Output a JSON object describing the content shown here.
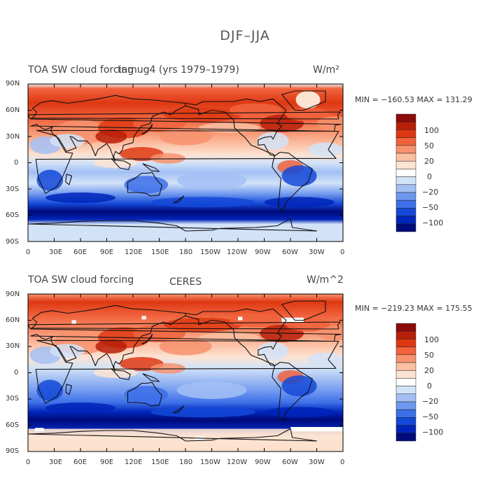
{
  "figure_title": "DJF–JJA",
  "colors": {
    "frame": "#000000",
    "coast": "#111111"
  },
  "colorbar": {
    "colors": [
      "#000a7a",
      "#0025b8",
      "#1449d8",
      "#3d6fe8",
      "#6e97ee",
      "#a3bff4",
      "#d2e3f8",
      "#ffffff",
      "#fde3d2",
      "#fbbfa3",
      "#f7926e",
      "#f0633d",
      "#de3812",
      "#b81f08",
      "#8b0a0a"
    ],
    "labels": [
      "100",
      "50",
      "20",
      "0",
      "−20",
      "−50",
      "−100"
    ]
  },
  "x_ticks": [
    "0",
    "30E",
    "60E",
    "90E",
    "120E",
    "150E",
    "180",
    "150W",
    "120W",
    "90W",
    "60W",
    "30W",
    "0"
  ],
  "y_ticks": [
    "90N",
    "60N",
    "30N",
    "0",
    "30S",
    "60S",
    "90S"
  ],
  "panels": [
    {
      "title_left": "TOA SW cloud forcing",
      "title_center": "tamug4 (yrs 1979–1979)",
      "units": "W/m²",
      "stats": "MIN = −160.53  MAX = 131.29"
    },
    {
      "title_left": "TOA SW cloud forcing",
      "title_center": "CERES",
      "units": "W/m^2",
      "stats": "MIN = −219.23  MAX = 175.55"
    }
  ]
}
